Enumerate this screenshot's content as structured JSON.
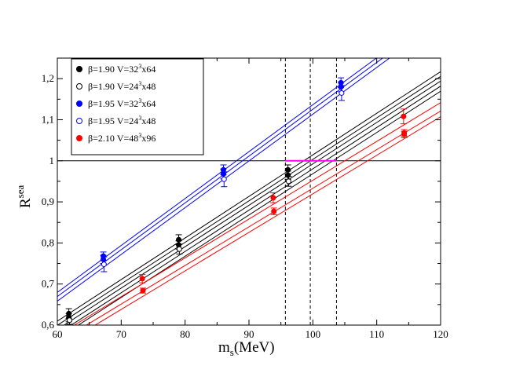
{
  "chart_data": {
    "type": "scatter",
    "title": "",
    "xlabel_main": "m",
    "xlabel_sub": "s",
    "xlabel_unit": "(MeV)",
    "ylabel_main": "R",
    "ylabel_sup": "sea",
    "xlim": [
      60,
      120
    ],
    "ylim": [
      0.6,
      1.25
    ],
    "xticks": [
      "60",
      "70",
      "80",
      "90",
      "100",
      "110",
      "120"
    ],
    "yticks": [
      "0,6",
      "0,7",
      "0,8",
      "0,9",
      "1",
      "1,1",
      "1,2"
    ],
    "legend_position": "top-left",
    "legend": [
      {
        "series": 0,
        "label": "β=1.90 V=32",
        "sup": "3",
        "suffix": "x64"
      },
      {
        "series": 1,
        "label": "β=1.90 V=24",
        "sup": "3",
        "suffix": "x48"
      },
      {
        "series": 2,
        "label": "β=1.95 V=32",
        "sup": "3",
        "suffix": "x64"
      },
      {
        "series": 3,
        "label": "β=1.95 V=24",
        "sup": "3",
        "suffix": "x48"
      },
      {
        "series": 4,
        "label": "β=2.10 V=48",
        "sup": "3",
        "suffix": "x96"
      }
    ],
    "horizontal_line": {
      "y": 1.0,
      "color": "#000000"
    },
    "vertical_dashed_lines": [
      95.7,
      99.6,
      103.7
    ],
    "highlight_segment": {
      "x": [
        95.7,
        103.7
      ],
      "y": 1.0,
      "color": "#ff00ff"
    },
    "series": [
      {
        "name": "β=1.90 V=32^3x64",
        "color": "#000000",
        "marker": "filled",
        "points": [
          {
            "x": 61.8,
            "y": 0.628,
            "err": 0.012
          },
          {
            "x": 79.0,
            "y": 0.808,
            "err": 0.012
          },
          {
            "x": 96.1,
            "y": 0.978,
            "err": 0.012
          },
          {
            "x": 61.8,
            "y": 0.618,
            "err": 0.01
          },
          {
            "x": 79.0,
            "y": 0.795,
            "err": 0.01
          },
          {
            "x": 96.1,
            "y": 0.965,
            "err": 0.01
          }
        ],
        "fit_lines": [
          {
            "slope": 0.01012,
            "intercept": 0.0025
          },
          {
            "slope": 0.0101,
            "intercept": -0.0065
          },
          {
            "slope": 0.01008,
            "intercept": -0.0155
          }
        ]
      },
      {
        "name": "β=1.90 V=24^3x48",
        "color": "#000000",
        "marker": "open",
        "points": [
          {
            "x": 61.9,
            "y": 0.612,
            "err": 0.01
          },
          {
            "x": 79.1,
            "y": 0.785,
            "err": 0.012
          },
          {
            "x": 96.2,
            "y": 0.95,
            "err": 0.012
          }
        ],
        "fit_lines": [
          {
            "slope": 0.01006,
            "intercept": -0.0255
          },
          {
            "slope": 0.01004,
            "intercept": -0.0355
          }
        ]
      },
      {
        "name": "β=1.95 V=32^3x64",
        "color": "#0000ff",
        "marker": "filled",
        "points": [
          {
            "x": 67.2,
            "y": 0.768,
            "err": 0.01
          },
          {
            "x": 86.0,
            "y": 0.978,
            "err": 0.012
          },
          {
            "x": 104.4,
            "y": 1.19,
            "err": 0.012
          },
          {
            "x": 67.2,
            "y": 0.76,
            "err": 0.01
          },
          {
            "x": 86.0,
            "y": 0.968,
            "err": 0.012
          },
          {
            "x": 104.4,
            "y": 1.18,
            "err": 0.012
          }
        ],
        "fit_lines": [
          {
            "slope": 0.01142,
            "intercept": -0.0055
          },
          {
            "slope": 0.0114,
            "intercept": -0.0145
          }
        ]
      },
      {
        "name": "β=1.95 V=24^3x48",
        "color": "#0000ff",
        "marker": "open",
        "points": [
          {
            "x": 67.3,
            "y": 0.748,
            "err": 0.018
          },
          {
            "x": 86.1,
            "y": 0.955,
            "err": 0.018
          },
          {
            "x": 104.5,
            "y": 1.165,
            "err": 0.018
          }
        ],
        "fit_lines": [
          {
            "slope": 0.01138,
            "intercept": -0.0245
          }
        ]
      },
      {
        "name": "β=2.10 V=48^3x96",
        "color": "#ff0000",
        "marker": "filled",
        "points": [
          {
            "x": 73.3,
            "y": 0.713,
            "err": 0.01
          },
          {
            "x": 93.8,
            "y": 0.91,
            "err": 0.012
          },
          {
            "x": 114.2,
            "y": 1.108,
            "err": 0.018
          },
          {
            "x": 73.4,
            "y": 0.684,
            "err": 0.006
          },
          {
            "x": 93.9,
            "y": 0.877,
            "err": 0.008
          },
          {
            "x": 114.3,
            "y": 1.068,
            "err": 0.008
          },
          {
            "x": 114.3,
            "y": 1.064,
            "err": 0.008
          }
        ],
        "fit_lines": [
          {
            "slope": 0.00945,
            "intercept": 0.0077
          },
          {
            "slope": 0.0094,
            "intercept": -0.0068
          },
          {
            "slope": 0.00938,
            "intercept": -0.0184
          }
        ]
      }
    ]
  }
}
